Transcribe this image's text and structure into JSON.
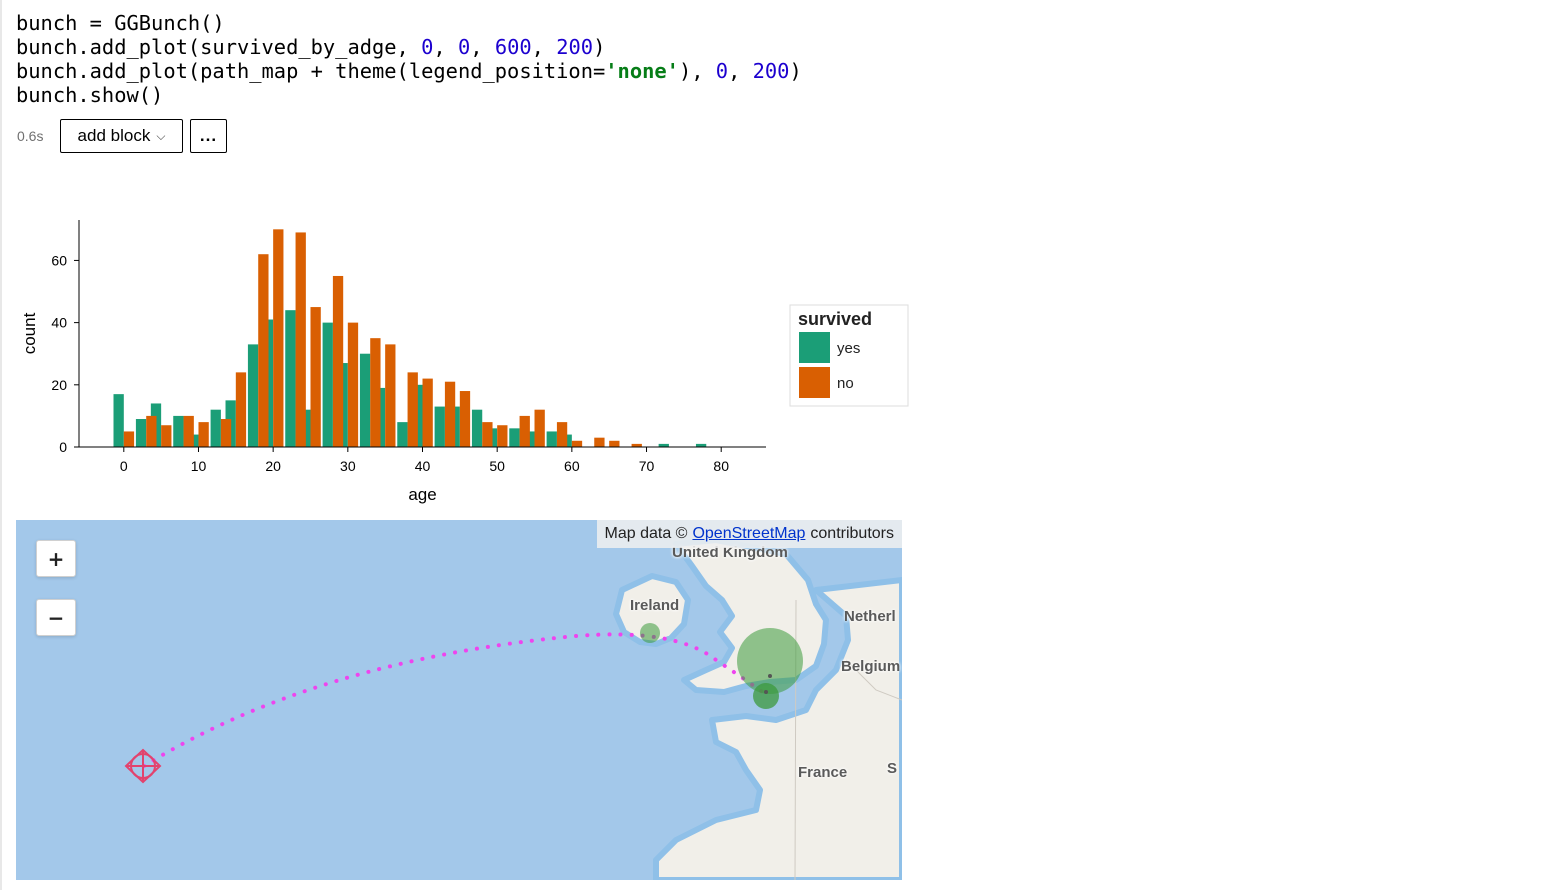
{
  "code": {
    "lines": [
      [
        {
          "t": "bunch = GGBunch()",
          "c": "plain"
        }
      ],
      [
        {
          "t": "bunch.add_plot(survived_by_adge, ",
          "c": "plain"
        },
        {
          "t": "0",
          "c": "num"
        },
        {
          "t": ", ",
          "c": "plain"
        },
        {
          "t": "0",
          "c": "num"
        },
        {
          "t": ", ",
          "c": "plain"
        },
        {
          "t": "600",
          "c": "num"
        },
        {
          "t": ", ",
          "c": "plain"
        },
        {
          "t": "200",
          "c": "num"
        },
        {
          "t": ")",
          "c": "plain"
        }
      ],
      [
        {
          "t": "bunch.add_plot(path_map + theme(legend_position=",
          "c": "plain"
        },
        {
          "t": "'none'",
          "c": "str"
        },
        {
          "t": "), ",
          "c": "plain"
        },
        {
          "t": "0",
          "c": "num"
        },
        {
          "t": ", ",
          "c": "plain"
        },
        {
          "t": "200",
          "c": "num"
        },
        {
          "t": ")",
          "c": "plain"
        }
      ],
      [
        {
          "t": "bunch.show()",
          "c": "plain"
        }
      ]
    ]
  },
  "toolbar": {
    "runtime": "0.6s",
    "add_block_label": "add block",
    "more_label": "..."
  },
  "chart_data": {
    "type": "bar",
    "xlabel": "age",
    "ylabel": "count",
    "xlim": [
      -6,
      86
    ],
    "ylim": [
      0,
      73
    ],
    "x_ticks": [
      0,
      10,
      20,
      30,
      40,
      50,
      60,
      70,
      80
    ],
    "y_ticks": [
      0,
      20,
      40,
      60
    ],
    "legend": {
      "title": "survived",
      "position": "right"
    },
    "series": [
      {
        "name": "yes",
        "color": "#1b9e77",
        "x": [
          0,
          3,
          5,
          8,
          10,
          13,
          15,
          18,
          20,
          23,
          25,
          28,
          30,
          33,
          35,
          38,
          40,
          43,
          45,
          48,
          50,
          53,
          55,
          58,
          60,
          63,
          65,
          68,
          70,
          73,
          75,
          78,
          80
        ],
        "values": [
          17,
          9,
          14,
          10,
          4,
          12,
          15,
          33,
          41,
          44,
          12,
          40,
          27,
          30,
          19,
          8,
          20,
          13,
          13,
          12,
          6,
          6,
          5,
          5,
          4,
          0,
          0,
          0,
          0,
          1,
          0,
          1,
          0
        ]
      },
      {
        "name": "no",
        "color": "#d95f02",
        "x": [
          0,
          3,
          5,
          8,
          10,
          13,
          15,
          18,
          20,
          23,
          25,
          28,
          30,
          33,
          35,
          38,
          40,
          43,
          45,
          48,
          50,
          53,
          55,
          58,
          60,
          63,
          65,
          68,
          70,
          73,
          75,
          78,
          80
        ],
        "values": [
          5,
          10,
          7,
          10,
          8,
          9,
          24,
          62,
          70,
          69,
          45,
          55,
          40,
          35,
          33,
          24,
          22,
          21,
          18,
          8,
          7,
          10,
          12,
          8,
          2,
          3,
          2,
          1,
          0,
          0,
          0,
          0,
          0
        ]
      }
    ]
  },
  "map": {
    "attribution_prefix": "Map data ©",
    "attribution_link": "OpenStreetMap",
    "attribution_suffix": "contributors",
    "zoom_in": "+",
    "zoom_out": "−",
    "labels": {
      "united_kingdom": "United Kingdom",
      "ireland": "Ireland",
      "netherlands": "Netherl",
      "belgium": "Belgium",
      "france": "France",
      "s": "S"
    },
    "path_color": "#ee44ee",
    "marker_color": "#e2436e",
    "bubble_color": "#3c9a3c"
  }
}
